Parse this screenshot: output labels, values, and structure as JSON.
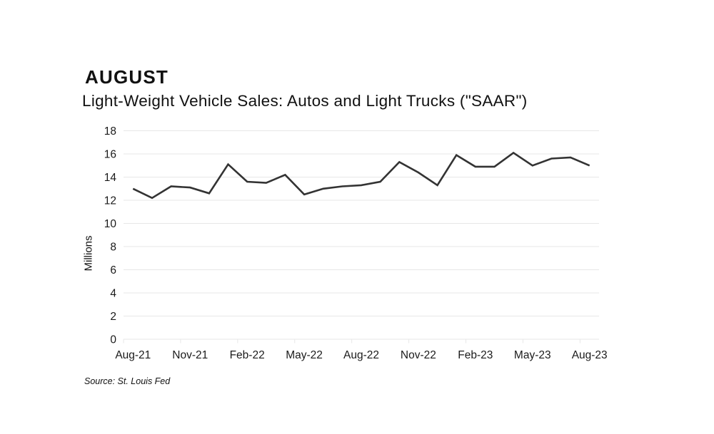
{
  "page": {
    "title": "AUGUST",
    "subtitle": "Light-Weight Vehicle Sales: Autos and Light Trucks (\"SAAR\")",
    "source": "Source: St. Louis Fed"
  },
  "chart_data": {
    "type": "line",
    "title": "Light-Weight Vehicle Sales: Autos and Light Trucks (\"SAAR\")",
    "xlabel": "",
    "ylabel": "Millions",
    "ylim": [
      0,
      18
    ],
    "y_tick_step": 2,
    "grid": true,
    "legend": false,
    "line_color": "#333333",
    "grid_color": "#e7e7e7",
    "x_tick_labels": [
      "Aug-21",
      "Nov-21",
      "Feb-22",
      "May-22",
      "Aug-22",
      "Nov-22",
      "Feb-23",
      "May-23",
      "Aug-23"
    ],
    "categories": [
      "Aug-21",
      "Sep-21",
      "Oct-21",
      "Nov-21",
      "Dec-21",
      "Jan-22",
      "Feb-22",
      "Mar-22",
      "Apr-22",
      "May-22",
      "Jun-22",
      "Jul-22",
      "Aug-22",
      "Sep-22",
      "Oct-22",
      "Nov-22",
      "Dec-22",
      "Jan-23",
      "Feb-23",
      "Mar-23",
      "Apr-23",
      "May-23",
      "Jun-23",
      "Jul-23",
      "Aug-23"
    ],
    "values": [
      13.0,
      12.2,
      13.2,
      13.1,
      12.6,
      15.1,
      13.6,
      13.5,
      14.2,
      12.5,
      13.0,
      13.2,
      13.3,
      13.6,
      15.3,
      14.4,
      13.3,
      15.9,
      14.9,
      14.9,
      16.1,
      15.0,
      15.6,
      15.7,
      15.0
    ]
  }
}
